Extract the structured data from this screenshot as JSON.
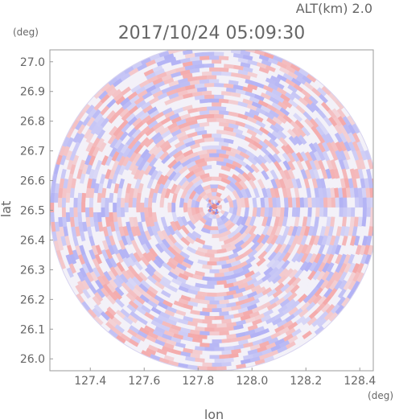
{
  "chart_data": {
    "type": "heatmap",
    "title": "2017/10/24 05:09:30",
    "subtitle": "ALT(km) 2.0",
    "xlabel": "lon",
    "ylabel": "lat",
    "x_unit": "(deg)",
    "y_unit": "(deg)",
    "xlim": [
      127.25,
      128.45
    ],
    "ylim": [
      25.96,
      27.04
    ],
    "xticks": [
      127.4,
      127.6,
      127.8,
      128.0,
      128.2,
      128.4
    ],
    "xtick_labels": [
      "127.4",
      "127.6",
      "127.8",
      "128.0",
      "128.2",
      "128.4"
    ],
    "yticks": [
      26.0,
      26.1,
      26.2,
      26.3,
      26.4,
      26.5,
      26.6,
      26.7,
      26.8,
      26.9,
      27.0
    ],
    "ytick_labels": [
      "26.0",
      "26.1",
      "26.2",
      "26.3",
      "26.4",
      "26.5",
      "26.6",
      "26.7",
      "26.8",
      "26.9",
      "27.0"
    ],
    "field_center": {
      "lon": 127.86,
      "lat": 26.51
    },
    "field_radius_lon": 0.61,
    "field_radius_lat": 0.55,
    "grid": false,
    "colors": {
      "positive": "#f4a0a0",
      "negative": "#a9a9f4",
      "neutral": "#f3f1f8",
      "axis": "#999999",
      "text": "#666666"
    }
  }
}
